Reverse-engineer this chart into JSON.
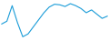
{
  "y_values": [
    10.0,
    11.0,
    16.5,
    10.5,
    5.5,
    6.5,
    9.0,
    11.5,
    14.0,
    16.0,
    17.0,
    16.8,
    16.2,
    17.2,
    16.5,
    15.5,
    14.0,
    15.0,
    13.5,
    12.0,
    12.8
  ],
  "line_color": "#1a9cd8",
  "linewidth": 0.8,
  "background_color": "#ffffff",
  "ylim_min": 4.0,
  "ylim_max": 18.5
}
